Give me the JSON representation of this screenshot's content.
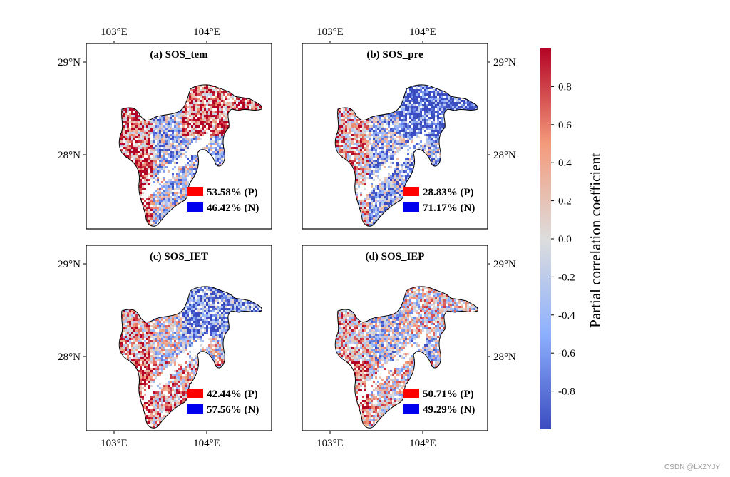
{
  "chart_data": [
    {
      "type": "map",
      "title": "(a) SOS_tem",
      "legend": [
        {
          "label": "53.58% (P)",
          "color": "#ff0000",
          "share": 53.58
        },
        {
          "label": "46.42% (N)",
          "color": "#0000ee",
          "share": 46.42
        }
      ]
    },
    {
      "type": "map",
      "title": "(b) SOS_pre",
      "legend": [
        {
          "label": "28.83% (P)",
          "color": "#ff0000",
          "share": 28.83
        },
        {
          "label": "71.17% (N)",
          "color": "#0000ee",
          "share": 71.17
        }
      ]
    },
    {
      "type": "map",
      "title": "(c) SOS_IET",
      "legend": [
        {
          "label": "42.44% (P)",
          "color": "#ff0000",
          "share": 42.44
        },
        {
          "label": "57.56% (N)",
          "color": "#0000ee",
          "share": 57.56
        }
      ]
    },
    {
      "type": "map",
      "title": "(d) SOS_IEP",
      "legend": [
        {
          "label": "50.71% (P)",
          "color": "#ff0000",
          "share": 50.71
        },
        {
          "label": "49.29% (N)",
          "color": "#0000ee",
          "share": 49.29
        }
      ]
    }
  ],
  "axes": {
    "lon_ticks": [
      "103°E",
      "104°E"
    ],
    "lat_ticks": [
      "29°N",
      "28°N"
    ]
  },
  "colorbar": {
    "label": "Partial correlation coefficient",
    "ticks": [
      "0.8",
      "0.6",
      "0.4",
      "0.2",
      "0.0",
      "-0.2",
      "-0.4",
      "-0.6",
      "-0.8"
    ],
    "range": [
      -1,
      1
    ],
    "colormap": "coolwarm",
    "color_low": "#3b4cc0",
    "color_mid": "#dddddd",
    "color_high": "#b40426"
  },
  "watermark": "CSDN @LXZYJY"
}
